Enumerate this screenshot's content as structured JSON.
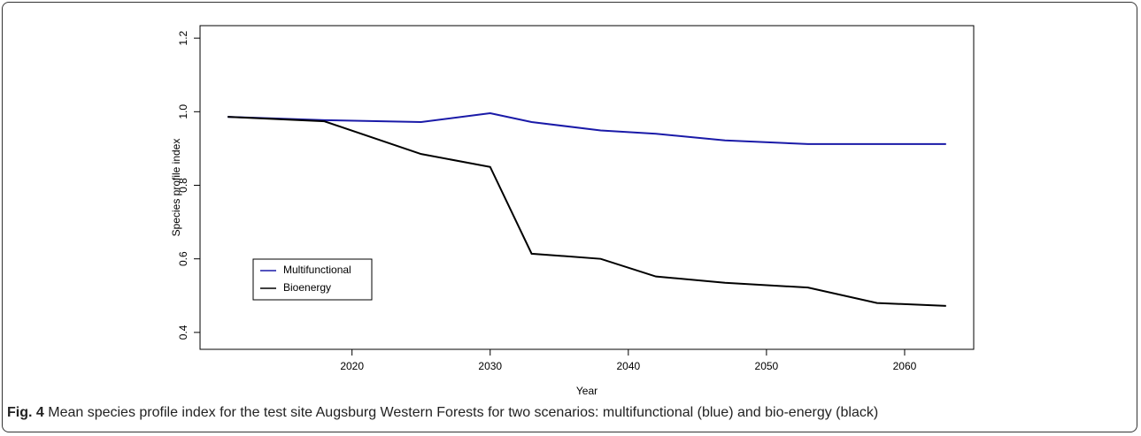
{
  "chart_data": {
    "type": "line",
    "x_label": "Year",
    "y_label": "Species profile index",
    "x": [
      2011,
      2018,
      2025,
      2030,
      2033,
      2038,
      2042,
      2047,
      2053,
      2058,
      2063
    ],
    "series": [
      {
        "name": "Multifunctional",
        "color": "#1a1aa8",
        "values": [
          0.986,
          0.977,
          0.972,
          0.996,
          0.972,
          0.949,
          0.94,
          0.922,
          0.912,
          0.912,
          0.912
        ]
      },
      {
        "name": "Bioenergy",
        "color": "#000000",
        "values": [
          0.986,
          0.974,
          0.885,
          0.85,
          0.614,
          0.6,
          0.552,
          0.535,
          0.522,
          0.48,
          0.472
        ]
      }
    ],
    "xlim": [
      2009,
      2065
    ],
    "xticks": [
      2020,
      2030,
      2040,
      2050,
      2060
    ],
    "ylim": [
      0.354,
      1.234
    ],
    "yticks": [
      0.4,
      0.6,
      0.8,
      {
        "value": 1.0,
        "label": "1.0"
      },
      1.2
    ],
    "legend": "bottom-left"
  },
  "caption": {
    "label": "Fig. 4",
    "text": "Mean species profile index for the test site Augsburg Western Forests for two scenarios: multifunctional (blue) and bio-energy (black)"
  }
}
